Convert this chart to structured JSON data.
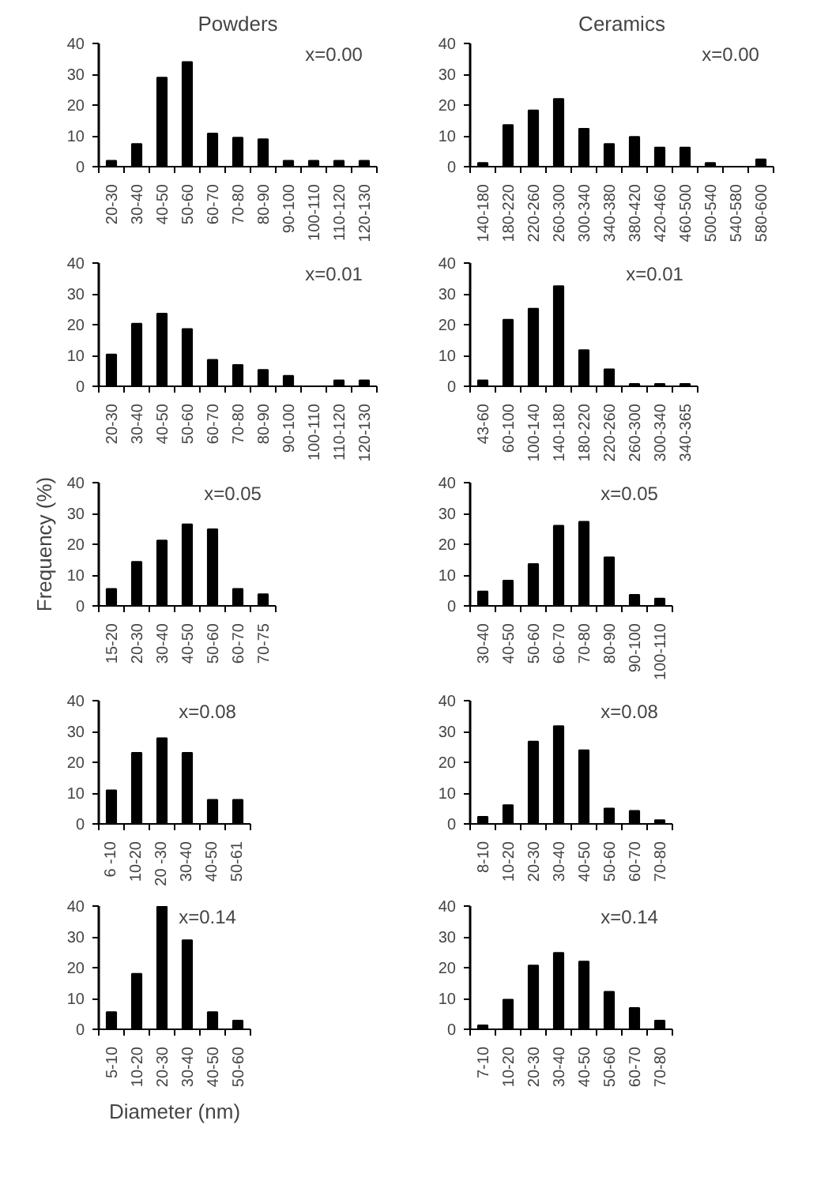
{
  "chart_data": [
    {
      "type": "bar",
      "subtitle": "Powders",
      "title": "x=0.00",
      "categories": [
        "20-30",
        "30-40",
        "40-50",
        "50-60",
        "60-70",
        "70-80",
        "80-90",
        "90-100",
        "100-110",
        "110-120",
        "120-130"
      ],
      "values": [
        1.9,
        7.4,
        28.9,
        34,
        10.8,
        9.4,
        8.9,
        1.9,
        1.9,
        1.9,
        1.9
      ],
      "color": "#000000",
      "ylim": [
        0,
        40
      ],
      "yticks": [
        0,
        10,
        20,
        30,
        40
      ]
    },
    {
      "type": "bar",
      "subtitle": "Ceramics",
      "title": "x=0.00",
      "categories": [
        "140-180",
        "180-220",
        "220-260",
        "260-300",
        "300-340",
        "340-380",
        "380-420",
        "420-460",
        "460-500",
        "500-540",
        "540-580",
        "580-600"
      ],
      "values": [
        1.2,
        13.5,
        18.3,
        22,
        12.3,
        7.4,
        9.7,
        6.2,
        6.2,
        1.2,
        0,
        2.4
      ],
      "color": "#000000",
      "ylim": [
        0,
        40
      ],
      "yticks": [
        0,
        10,
        20,
        30,
        40
      ]
    },
    {
      "type": "bar",
      "title": "x=0.01",
      "categories": [
        "20-30",
        "30-40",
        "40-50",
        "50-60",
        "60-70",
        "70-80",
        "80-90",
        "90-100",
        "100-110",
        "110-120",
        "120-130"
      ],
      "values": [
        10.3,
        20.3,
        23.6,
        18.6,
        8.6,
        6.9,
        5.3,
        3.4,
        0,
        1.9,
        1.9
      ],
      "color": "#000000",
      "ylim": [
        0,
        40
      ],
      "yticks": [
        0,
        10,
        20,
        30,
        40
      ]
    },
    {
      "type": "bar",
      "title": "x=0.01",
      "categories": [
        "43-60",
        "60-100",
        "100-140",
        "140-180",
        "180-220",
        "220-260",
        "260-300",
        "300-340",
        "340-365"
      ],
      "values": [
        1.9,
        21.6,
        25.2,
        32.5,
        11.7,
        5.5,
        0.8,
        0.8,
        0.8
      ],
      "color": "#000000",
      "ylim": [
        0,
        40
      ],
      "yticks": [
        0,
        10,
        20,
        30,
        40
      ]
    },
    {
      "type": "bar",
      "title": "x=0.05",
      "ylabel": "Frequency (%)",
      "categories": [
        "15-20",
        "20-30",
        "30-40",
        "40-50",
        "50-60",
        "60-70",
        "70-75"
      ],
      "values": [
        5.5,
        14.3,
        21.2,
        26.5,
        24.9,
        5.5,
        3.8
      ],
      "color": "#000000",
      "ylim": [
        0,
        40
      ],
      "yticks": [
        0,
        10,
        20,
        30,
        40
      ]
    },
    {
      "type": "bar",
      "title": "x=0.05",
      "categories": [
        "30-40",
        "40-50",
        "50-60",
        "60-70",
        "70-80",
        "80-90",
        "90-100",
        "100-110"
      ],
      "values": [
        4.7,
        8.2,
        13.6,
        26,
        27.3,
        15.8,
        3.6,
        2.4
      ],
      "color": "#000000",
      "ylim": [
        0,
        40
      ],
      "yticks": [
        0,
        10,
        20,
        30,
        40
      ]
    },
    {
      "type": "bar",
      "title": "x=0.08",
      "categories": [
        "6 -10",
        "10-20",
        "20 -30",
        "30-40",
        "40-50",
        "50-61"
      ],
      "values": [
        10.9,
        23.1,
        27.8,
        23.1,
        7.8,
        7.8
      ],
      "color": "#000000",
      "ylim": [
        0,
        40
      ],
      "yticks": [
        0,
        10,
        20,
        30,
        40
      ]
    },
    {
      "type": "bar",
      "title": "x=0.08",
      "categories": [
        "8-10",
        "10-20",
        "20-30",
        "30-40",
        "40-50",
        "50-60",
        "60-70",
        "70-80"
      ],
      "values": [
        2.3,
        6.1,
        26.7,
        31.7,
        23.9,
        5,
        4.2,
        1.2
      ],
      "color": "#000000",
      "ylim": [
        0,
        40
      ],
      "yticks": [
        0,
        10,
        20,
        30,
        40
      ]
    },
    {
      "type": "bar",
      "title": "x=0.14",
      "xlabel": "Diameter (nm)",
      "categories": [
        "5-10",
        "10-20",
        "20-30",
        "30-40",
        "40-50",
        "50-60"
      ],
      "values": [
        5.6,
        18,
        39.8,
        28.9,
        5.6,
        2.8
      ],
      "color": "#000000",
      "ylim": [
        0,
        40
      ],
      "yticks": [
        0,
        10,
        20,
        30,
        40
      ]
    },
    {
      "type": "bar",
      "title": "x=0.14",
      "categories": [
        "7-10",
        "10-20",
        "20-30",
        "30-40",
        "40-50",
        "50-60",
        "60-70",
        "70-80"
      ],
      "values": [
        1.3,
        9.6,
        20.7,
        24.8,
        22,
        12.2,
        6.9,
        2.8
      ],
      "color": "#000000",
      "ylim": [
        0,
        40
      ],
      "yticks": [
        0,
        10,
        20,
        30,
        40
      ]
    }
  ]
}
